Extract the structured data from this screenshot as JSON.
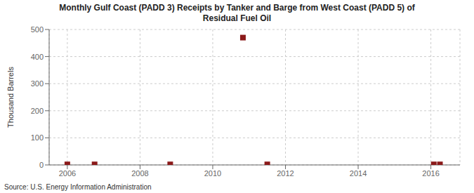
{
  "chart_data": {
    "type": "scatter",
    "title": "Monthly Gulf Coast (PADD 3) Receipts by Tanker and Barge from West Coast (PADD 5) of\nResidual Fuel Oil",
    "ylabel": "Thousand Barrels",
    "annotation": "Source: U.S. Energy Information Administration",
    "x": [
      2006.0,
      2006.75,
      2008.83,
      2010.83,
      2011.5,
      2016.08,
      2016.25
    ],
    "values": [
      2,
      2,
      2,
      470,
      2,
      2,
      2
    ],
    "color": "#8b1a1a",
    "marker": "square",
    "xlim": [
      2005.5,
      2016.8
    ],
    "ylim": [
      0,
      500
    ],
    "xticks": [
      2006,
      2008,
      2010,
      2012,
      2014,
      2016
    ],
    "yticks": [
      0,
      100,
      200,
      300,
      400,
      500
    ],
    "grid": true
  }
}
